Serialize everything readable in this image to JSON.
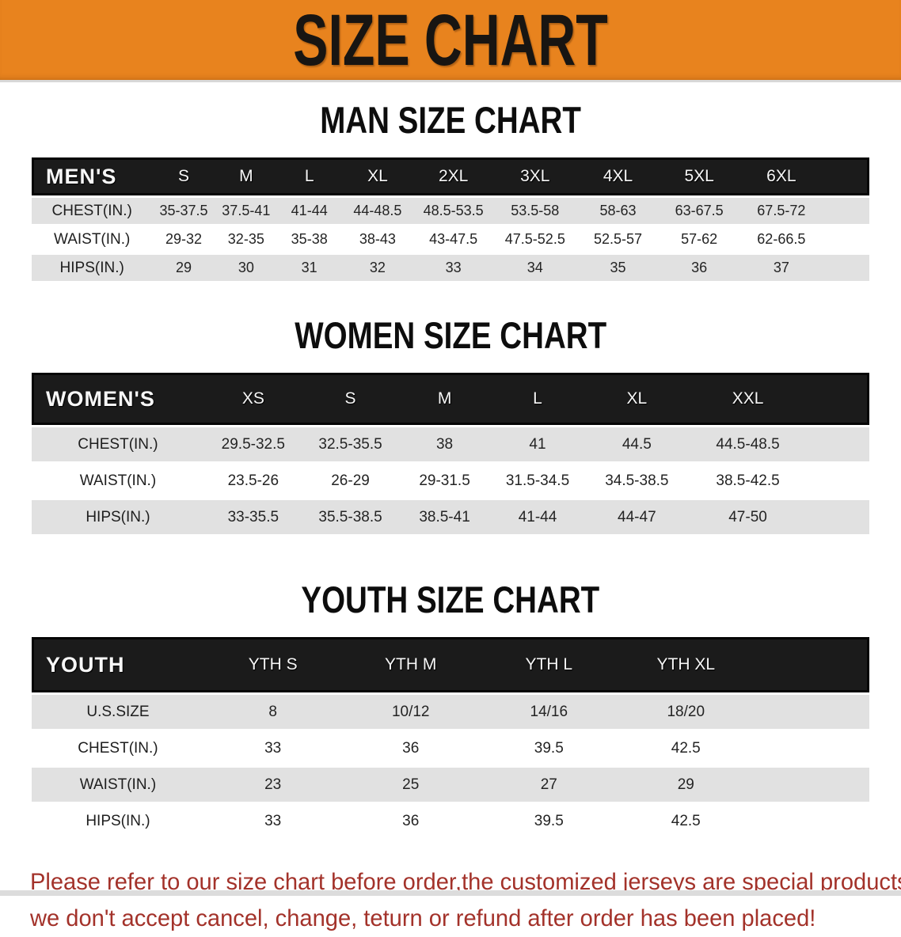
{
  "banner": {
    "title": "SIZE CHART"
  },
  "colors": {
    "banner_bg": "#e8831e",
    "header_bar": "#1b1b1b",
    "row_gray": "#e1e1e1",
    "disclaimer_red": "#a3322a"
  },
  "sections": [
    {
      "title": "MAN SIZE CHART",
      "header_label": "MEN'S",
      "columns": [
        "S",
        "M",
        "L",
        "XL",
        "2XL",
        "3XL",
        "4XL",
        "5XL",
        "6XL"
      ],
      "rows": [
        {
          "label": "CHEST(IN.)",
          "values": [
            "35-37.5",
            "37.5-41",
            "41-44",
            "44-48.5",
            "48.5-53.5",
            "53.5-58",
            "58-63",
            "63-67.5",
            "67.5-72"
          ]
        },
        {
          "label": "WAIST(IN.)",
          "values": [
            "29-32",
            "32-35",
            "35-38",
            "38-43",
            "43-47.5",
            "47.5-52.5",
            "52.5-57",
            "57-62",
            "62-66.5"
          ]
        },
        {
          "label": "HIPS(IN.)",
          "values": [
            "29",
            "30",
            "31",
            "32",
            "33",
            "34",
            "35",
            "36",
            "37"
          ]
        }
      ]
    },
    {
      "title": "WOMEN SIZE CHART",
      "header_label": "WOMEN'S",
      "columns": [
        "XS",
        "S",
        "M",
        "L",
        "XL",
        "XXL"
      ],
      "rows": [
        {
          "label": "CHEST(IN.)",
          "values": [
            "29.5-32.5",
            "32.5-35.5",
            "38",
            "41",
            "44.5",
            "44.5-48.5"
          ]
        },
        {
          "label": "WAIST(IN.)",
          "values": [
            "23.5-26",
            "26-29",
            "29-31.5",
            "31.5-34.5",
            "34.5-38.5",
            "38.5-42.5"
          ]
        },
        {
          "label": "HIPS(IN.)",
          "values": [
            "33-35.5",
            "35.5-38.5",
            "38.5-41",
            "41-44",
            "44-47",
            "47-50"
          ]
        }
      ]
    },
    {
      "title": "YOUTH SIZE CHART",
      "header_label": "YOUTH",
      "columns": [
        "YTH S",
        "YTH M",
        "YTH L",
        "YTH XL"
      ],
      "rows": [
        {
          "label": "U.S.SIZE",
          "values": [
            "8",
            "10/12",
            "14/16",
            "18/20"
          ]
        },
        {
          "label": "CHEST(IN.)",
          "values": [
            "33",
            "36",
            "39.5",
            "42.5"
          ]
        },
        {
          "label": "WAIST(IN.)",
          "values": [
            "23",
            "25",
            "27",
            "29"
          ]
        },
        {
          "label": "HIPS(IN.)",
          "values": [
            "33",
            "36",
            "39.5",
            "42.5"
          ]
        }
      ]
    }
  ],
  "disclaimer": {
    "line1": "Please refer to our size chart before order,the customized jerseys are special products,",
    "line2": "we don't accept cancel, change, teturn or refund after order has been placed!"
  }
}
